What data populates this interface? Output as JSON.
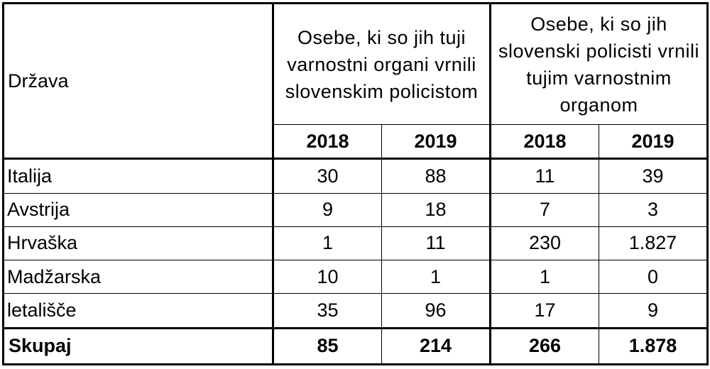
{
  "table": {
    "country_header": "Država",
    "group1_header": "Osebe, ki so jih tuji varnostni organi vrnili slovenskim policistom",
    "group2_header": "Osebe, ki so jih slovenski policisti vrnili tujim varnostnim organom",
    "years": [
      "2018",
      "2019",
      "2018",
      "2019"
    ],
    "rows": [
      {
        "country": "Italija",
        "values": [
          "30",
          "88",
          "11",
          "39"
        ]
      },
      {
        "country": "Avstrija",
        "values": [
          "9",
          "18",
          "7",
          "3"
        ]
      },
      {
        "country": "Hrvaška",
        "values": [
          "1",
          "11",
          "230",
          "1.827"
        ]
      },
      {
        "country": "Madžarska",
        "values": [
          "10",
          "1",
          "1",
          "0"
        ]
      },
      {
        "country": "letališče",
        "values": [
          "35",
          "96",
          "17",
          "9"
        ]
      }
    ],
    "total": {
      "label": "Skupaj",
      "values": [
        "85",
        "214",
        "266",
        "1.878"
      ]
    }
  }
}
